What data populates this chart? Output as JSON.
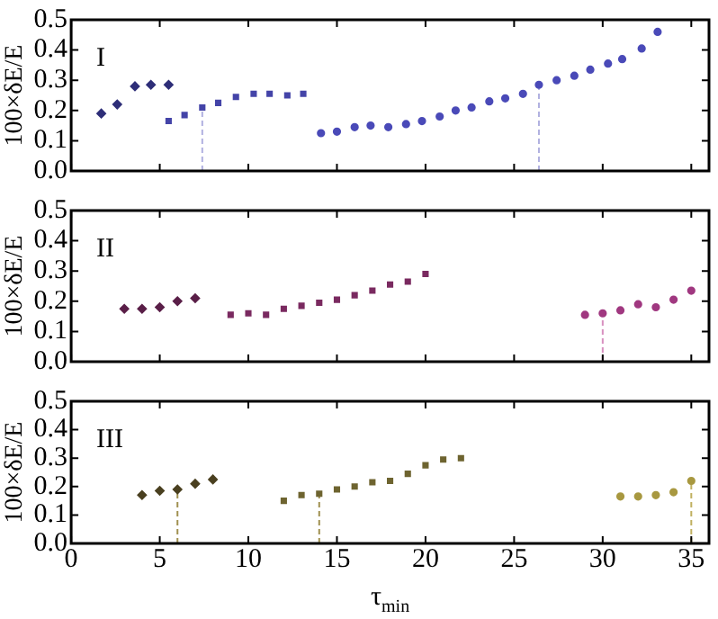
{
  "chart_data": [
    {
      "type": "scatter",
      "ylabel": "100×δE/E",
      "annotations": [
        "I"
      ],
      "xlim": [
        0,
        36
      ],
      "ylim": [
        0,
        0.5
      ],
      "xticks": [
        0,
        5,
        10,
        15,
        20,
        25,
        30,
        35
      ],
      "yticks": [
        {
          "value": 0,
          "label": "0.0"
        },
        {
          "value": 0.1,
          "label": "0.1"
        },
        {
          "value": 0.2,
          "label": "0.2"
        },
        {
          "value": 0.3,
          "label": "0.3"
        },
        {
          "value": 0.4,
          "label": "0.4"
        },
        {
          "value": 0.5,
          "label": "0.5"
        }
      ],
      "tick_labels": "y",
      "grid": false,
      "legend": false,
      "series": [
        {
          "color": "#2e2e78",
          "marker": "diamond",
          "x": [
            1.7,
            2.6,
            3.6,
            4.5,
            5.5
          ],
          "values": [
            0.19,
            0.22,
            0.28,
            0.285,
            0.285
          ]
        },
        {
          "color": "#4444a8",
          "marker": "square",
          "x": [
            5.5,
            6.4,
            7.4,
            8.3,
            9.3,
            10.3,
            11.2,
            12.2,
            13.1
          ],
          "values": [
            0.165,
            0.185,
            0.21,
            0.225,
            0.245,
            0.255,
            0.255,
            0.25,
            0.255
          ]
        },
        {
          "color": "#4a4ab8",
          "marker": "circle",
          "x": [
            14.1,
            15.0,
            16.0,
            16.9,
            17.9,
            18.9,
            19.8,
            20.8,
            21.7,
            22.6,
            23.6,
            24.5,
            25.5,
            26.4,
            27.4,
            28.4,
            29.3,
            30.3,
            31.1,
            32.2,
            33.1
          ],
          "values": [
            0.125,
            0.13,
            0.145,
            0.15,
            0.145,
            0.155,
            0.165,
            0.18,
            0.2,
            0.21,
            0.23,
            0.24,
            0.255,
            0.285,
            0.3,
            0.315,
            0.335,
            0.355,
            0.37,
            0.405,
            0.46
          ]
        }
      ],
      "ref_lines": [
        {
          "axis": "x",
          "value": 7.4,
          "color": "#b0b0e0",
          "line_style": "dashed"
        },
        {
          "axis": "x",
          "value": 26.4,
          "color": "#b0b0e0",
          "line_style": "dashed"
        }
      ]
    },
    {
      "type": "scatter",
      "ylabel": "100×δE/E",
      "annotations": [
        "II"
      ],
      "xlim": [
        0,
        36
      ],
      "ylim": [
        0,
        0.5
      ],
      "xticks": [
        0,
        5,
        10,
        15,
        20,
        25,
        30,
        35
      ],
      "yticks": [
        {
          "value": 0,
          "label": "0.0"
        },
        {
          "value": 0.1,
          "label": "0.1"
        },
        {
          "value": 0.2,
          "label": "0.2"
        },
        {
          "value": 0.3,
          "label": "0.3"
        },
        {
          "value": 0.4,
          "label": "0.4"
        },
        {
          "value": 0.5,
          "label": "0.5"
        }
      ],
      "tick_labels": "y",
      "grid": false,
      "legend": false,
      "series": [
        {
          "color": "#5a1f48",
          "marker": "diamond",
          "x": [
            3,
            4,
            5,
            6,
            7
          ],
          "values": [
            0.175,
            0.175,
            0.18,
            0.2,
            0.21
          ]
        },
        {
          "color": "#7a2a60",
          "marker": "square",
          "x": [
            9,
            10,
            11,
            12,
            13,
            14,
            15,
            16,
            17,
            18,
            19,
            20
          ],
          "values": [
            0.155,
            0.16,
            0.155,
            0.175,
            0.185,
            0.195,
            0.205,
            0.22,
            0.235,
            0.255,
            0.265,
            0.29
          ]
        },
        {
          "color": "#a03880",
          "marker": "circle",
          "x": [
            29,
            30,
            31,
            32,
            33,
            34,
            35
          ],
          "values": [
            0.155,
            0.16,
            0.17,
            0.19,
            0.18,
            0.205,
            0.235
          ]
        }
      ],
      "ref_lines": [
        {
          "axis": "x",
          "value": 30,
          "color": "#d890c0",
          "line_style": "dashed"
        }
      ]
    },
    {
      "type": "scatter",
      "ylabel": "100×δE/E",
      "xlabel": "τ$_{min}$",
      "annotations": [
        "III"
      ],
      "xlim": [
        0,
        36
      ],
      "ylim": [
        0,
        0.5
      ],
      "xticks": [
        0,
        5,
        10,
        15,
        20,
        25,
        30,
        35
      ],
      "yticks": [
        {
          "value": 0,
          "label": "0.0"
        },
        {
          "value": 0.1,
          "label": "0.1"
        },
        {
          "value": 0.2,
          "label": "0.2"
        },
        {
          "value": 0.3,
          "label": "0.3"
        },
        {
          "value": 0.4,
          "label": "0.4"
        },
        {
          "value": 0.5,
          "label": "0.5"
        }
      ],
      "grid": false,
      "legend": false,
      "series": [
        {
          "color": "#4a4020",
          "marker": "diamond",
          "x": [
            4,
            5,
            6,
            7,
            8
          ],
          "values": [
            0.17,
            0.185,
            0.19,
            0.21,
            0.225
          ]
        },
        {
          "color": "#6e6430",
          "marker": "square",
          "x": [
            12,
            13,
            14,
            15,
            16,
            17,
            18,
            19,
            20,
            21,
            22
          ],
          "values": [
            0.15,
            0.17,
            0.175,
            0.19,
            0.2,
            0.215,
            0.22,
            0.245,
            0.275,
            0.295,
            0.3
          ]
        },
        {
          "color": "#a89840",
          "marker": "circle",
          "x": [
            31,
            32,
            33,
            34,
            35
          ],
          "values": [
            0.165,
            0.165,
            0.17,
            0.18,
            0.22
          ]
        }
      ],
      "ref_lines": [
        {
          "axis": "x",
          "value": 6,
          "color": "#a09050",
          "line_style": "dashed"
        },
        {
          "axis": "x",
          "value": 14,
          "color": "#a09050",
          "line_style": "dashed"
        },
        {
          "axis": "x",
          "value": 35,
          "color": "#c0b060",
          "line_style": "dashed"
        }
      ]
    }
  ]
}
